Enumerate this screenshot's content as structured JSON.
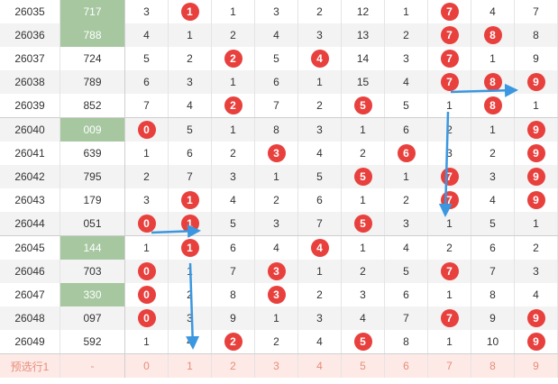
{
  "rows": [
    {
      "issue": "26035",
      "prize": "717",
      "hl": true,
      "vals": [
        3,
        1,
        1,
        3,
        2,
        12,
        1,
        7,
        4,
        7
      ],
      "balls": [
        1,
        7
      ]
    },
    {
      "issue": "26036",
      "prize": "788",
      "hl": true,
      "vals": [
        4,
        1,
        2,
        4,
        3,
        13,
        2,
        7,
        8,
        8
      ],
      "balls": [
        7,
        8
      ]
    },
    {
      "issue": "26037",
      "prize": "724",
      "hl": false,
      "vals": [
        5,
        2,
        2,
        5,
        4,
        14,
        3,
        7,
        1,
        9
      ],
      "balls": [
        2,
        4,
        7
      ]
    },
    {
      "issue": "26038",
      "prize": "789",
      "hl": false,
      "vals": [
        6,
        3,
        1,
        6,
        1,
        15,
        4,
        7,
        8,
        9
      ],
      "balls": [
        7,
        8,
        9
      ]
    },
    {
      "issue": "26039",
      "prize": "852",
      "hl": false,
      "vals": [
        7,
        4,
        2,
        7,
        2,
        5,
        5,
        1,
        8,
        1
      ],
      "balls": [
        2,
        5,
        8
      ]
    },
    {
      "issue": "26040",
      "prize": "009",
      "hl": true,
      "vals": [
        0,
        5,
        1,
        8,
        3,
        1,
        6,
        2,
        1,
        9
      ],
      "balls": [
        0,
        9
      ]
    },
    {
      "issue": "26041",
      "prize": "639",
      "hl": false,
      "vals": [
        1,
        6,
        2,
        3,
        4,
        2,
        6,
        3,
        2,
        9
      ],
      "balls": [
        3,
        6,
        9
      ]
    },
    {
      "issue": "26042",
      "prize": "795",
      "hl": false,
      "vals": [
        2,
        7,
        3,
        1,
        5,
        5,
        1,
        7,
        3,
        9
      ],
      "balls": [
        5,
        7,
        9
      ]
    },
    {
      "issue": "26043",
      "prize": "179",
      "hl": false,
      "vals": [
        3,
        1,
        4,
        2,
        6,
        1,
        2,
        7,
        4,
        9
      ],
      "balls": [
        1,
        7,
        9
      ]
    },
    {
      "issue": "26044",
      "prize": "051",
      "hl": false,
      "vals": [
        0,
        1,
        5,
        3,
        7,
        5,
        3,
        1,
        5,
        1
      ],
      "balls": [
        0,
        1,
        5
      ]
    },
    {
      "issue": "26045",
      "prize": "144",
      "hl": true,
      "vals": [
        1,
        1,
        6,
        4,
        4,
        1,
        4,
        2,
        6,
        2
      ],
      "balls": [
        1,
        4
      ]
    },
    {
      "issue": "26046",
      "prize": "703",
      "hl": false,
      "vals": [
        0,
        1,
        7,
        3,
        1,
        2,
        5,
        7,
        7,
        3
      ],
      "balls": [
        0,
        3,
        7
      ]
    },
    {
      "issue": "26047",
      "prize": "330",
      "hl": true,
      "vals": [
        0,
        2,
        8,
        3,
        2,
        3,
        6,
        1,
        8,
        4
      ],
      "balls": [
        0,
        3
      ]
    },
    {
      "issue": "26048",
      "prize": "097",
      "hl": false,
      "vals": [
        0,
        3,
        9,
        1,
        3,
        4,
        7,
        7,
        9,
        9
      ],
      "balls": [
        0,
        7,
        9
      ]
    },
    {
      "issue": "26049",
      "prize": "592",
      "hl": false,
      "vals": [
        1,
        4,
        2,
        2,
        4,
        5,
        8,
        1,
        10,
        9
      ],
      "balls": [
        2,
        5,
        9
      ]
    }
  ],
  "forecast": {
    "label": "预选行1",
    "prize": "-",
    "digits": [
      "0",
      "1",
      "2",
      "3",
      "4",
      "5",
      "6",
      "7",
      "8",
      "9"
    ]
  },
  "colors": {
    "ball": "#e8403d",
    "highlight": "#a6c7a0",
    "arrow": "#3a97e0",
    "forecast_bg": "#fdeae6"
  }
}
